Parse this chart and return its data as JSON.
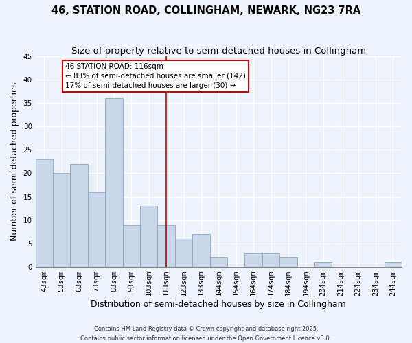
{
  "title": "46, STATION ROAD, COLLINGHAM, NEWARK, NG23 7RA",
  "subtitle": "Size of property relative to semi-detached houses in Collingham",
  "xlabel": "Distribution of semi-detached houses by size in Collingham",
  "ylabel": "Number of semi-detached properties",
  "categories": [
    "43sqm",
    "53sqm",
    "63sqm",
    "73sqm",
    "83sqm",
    "93sqm",
    "103sqm",
    "113sqm",
    "123sqm",
    "133sqm",
    "144sqm",
    "154sqm",
    "164sqm",
    "174sqm",
    "184sqm",
    "194sqm",
    "204sqm",
    "214sqm",
    "224sqm",
    "234sqm",
    "244sqm"
  ],
  "values": [
    23,
    20,
    22,
    16,
    36,
    9,
    13,
    9,
    6,
    7,
    2,
    0,
    3,
    3,
    2,
    0,
    1,
    0,
    0,
    0,
    1
  ],
  "bar_color": "#c8d8ea",
  "bar_edge_color": "#8aaabf",
  "bar_width": 1.0,
  "ylim": [
    0,
    45
  ],
  "yticks": [
    0,
    5,
    10,
    15,
    20,
    25,
    30,
    35,
    40,
    45
  ],
  "marker_line_index": 7,
  "marker_label": "46 STATION ROAD: 116sqm",
  "annotation_line1": "← 83% of semi-detached houses are smaller (142)",
  "annotation_line2": "17% of semi-detached houses are larger (30) →",
  "line_color": "#cc0000",
  "background_color": "#eef2fa",
  "grid_color": "#ffffff",
  "title_fontsize": 10.5,
  "subtitle_fontsize": 9.5,
  "axis_label_fontsize": 9,
  "tick_fontsize": 7.5,
  "annotation_fontsize": 7.5,
  "footer_line1": "Contains HM Land Registry data © Crown copyright and database right 2025.",
  "footer_line2": "Contains public sector information licensed under the Open Government Licence v3.0."
}
